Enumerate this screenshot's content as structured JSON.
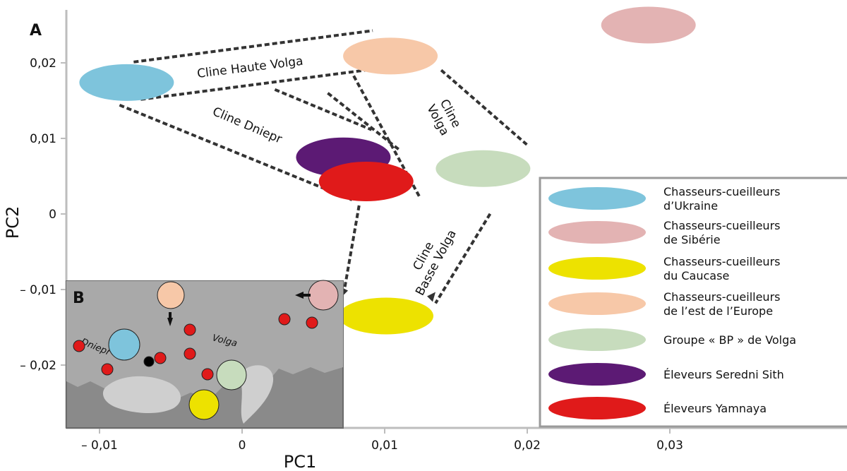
{
  "chart_data": {
    "type": "scatter",
    "title": "",
    "xlabel": "PC1",
    "ylabel": "PC2",
    "xlim": [
      -0.012,
      0.0395
    ],
    "ylim": [
      -0.027,
      0.0285
    ],
    "x_ticks": [
      "– 0,01",
      "0",
      "0,01",
      "0,02",
      "0,03"
    ],
    "x_tick_values": [
      -0.01,
      0,
      0.01,
      0.02,
      0.03
    ],
    "y_ticks": [
      "0,02",
      "0,01",
      "0",
      "– 0,01",
      "– 0,02"
    ],
    "y_tick_values": [
      0.02,
      0.01,
      0,
      -0.01,
      -0.02
    ],
    "grid": false,
    "legend_position": "bottom-right",
    "panel_labels": [
      "A",
      "B"
    ],
    "series": [
      {
        "name": "Chasseurs-cueilleurs d’Ukraine",
        "color": "#7ec4dc",
        "x": -0.0081,
        "y": 0.0174
      },
      {
        "name": "Chasseurs-cueilleurs de Sibérie",
        "color": "#e3b3b3",
        "x": 0.0285,
        "y": 0.025
      },
      {
        "name": "Chasseurs-cueilleurs du Caucase",
        "color": "#ede200",
        "x": 0.0101,
        "y": -0.0135
      },
      {
        "name": "Chasseurs-cueilleurs de l’est de l’Europe",
        "color": "#f7c8a8",
        "x": 0.0104,
        "y": 0.0209
      },
      {
        "name": "Groupe « BP » de Volga",
        "color": "#c7dcbd",
        "x": 0.0169,
        "y": 0.006
      },
      {
        "name": "Éleveurs Serednii Sith",
        "color": "#5c1a74",
        "x": 0.0071,
        "y": 0.0075
      },
      {
        "name": "Éleveurs Yamnaya",
        "color": "#e01a1a",
        "x": 0.0087,
        "y": 0.0043
      }
    ],
    "clines": [
      {
        "label": "Cline Haute Volga",
        "from": "Chasseurs-cueilleurs d’Ukraine",
        "to": "Chasseurs-cueilleurs de l’est de l’Europe"
      },
      {
        "label": "Cline Dniepr",
        "from": "Chasseurs-cueilleurs d’Ukraine",
        "to": "Éleveurs Yamnaya"
      },
      {
        "label": "Cline Volga",
        "from": "Chasseurs-cueilleurs de l’est de l’Europe",
        "to": "Groupe « BP » de Volga"
      },
      {
        "label": "Cline Basse Volga",
        "from": "Éleveurs Yamnaya",
        "to": "Chasseurs-cueilleurs du Caucase"
      }
    ],
    "legend": [
      {
        "line1": "Chasseurs-cueilleurs",
        "line2": "d’Ukraine",
        "color": "#7ec4dc"
      },
      {
        "line1": "Chasseurs-cueilleurs",
        "line2": "de Sibérie",
        "color": "#e3b3b3"
      },
      {
        "line1": "Chasseurs-cueilleurs",
        "line2": "du Caucase",
        "color": "#ede200"
      },
      {
        "line1": "Chasseurs-cueilleurs",
        "line2": "de l’est de l’Europe",
        "color": "#f7c8a8"
      },
      {
        "line1": "Groupe « BP » de Volga",
        "line2": "",
        "color": "#c7dcbd"
      },
      {
        "line1": "Éleveurs Seredni Sith",
        "line2": "",
        "color": "#5c1a74"
      },
      {
        "line1": "Éleveurs Yamnaya",
        "line2": "",
        "color": "#e01a1a"
      }
    ],
    "inset_map": {
      "labels": [
        "Dniepr",
        "Volga"
      ],
      "sites": [
        {
          "group": "Chasseurs-cueilleurs d’Ukraine",
          "color": "#7ec4dc"
        },
        {
          "group": "Chasseurs-cueilleurs de Sibérie",
          "color": "#e3b3b3"
        },
        {
          "group": "Chasseurs-cueilleurs du Caucase",
          "color": "#ede200"
        },
        {
          "group": "Chasseurs-cueilleurs de l’est de l’Europe",
          "color": "#f7c8a8"
        },
        {
          "group": "Groupe « BP » de Volga",
          "color": "#c7dcbd"
        },
        {
          "group": "Éleveurs Seredni Sith",
          "color": "#5c1a74"
        },
        {
          "group": "Éleveurs Yamnaya",
          "color": "#e01a1a"
        }
      ]
    }
  }
}
